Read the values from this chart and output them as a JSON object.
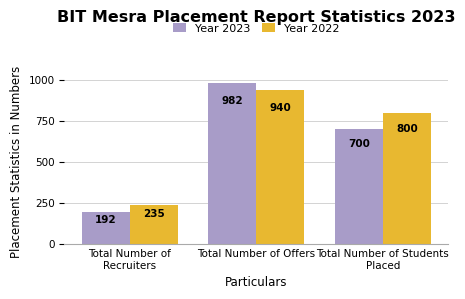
{
  "title": "BIT Mesra Placement Report Statistics 2023",
  "categories": [
    "Total Number of\nRecruiters",
    "Total Number of Offers",
    "Total Number of Students\nPlaced"
  ],
  "year2023_values": [
    192,
    982,
    700
  ],
  "year2022_values": [
    235,
    940,
    800
  ],
  "bar_color_2023": "#a89cc8",
  "bar_color_2022": "#e8b830",
  "xlabel": "Particulars",
  "ylabel": "Placement Statistics in Numbers",
  "ylim": [
    0,
    1000
  ],
  "yticks": [
    0,
    250,
    500,
    750,
    1000
  ],
  "legend_labels": [
    "Year 2023",
    "Year 2022"
  ],
  "bar_width": 0.38,
  "title_fontsize": 11.5,
  "axis_label_fontsize": 8.5,
  "tick_fontsize": 7.5,
  "legend_fontsize": 8,
  "value_label_fontsize": 7.5,
  "background_color": "#ffffff"
}
